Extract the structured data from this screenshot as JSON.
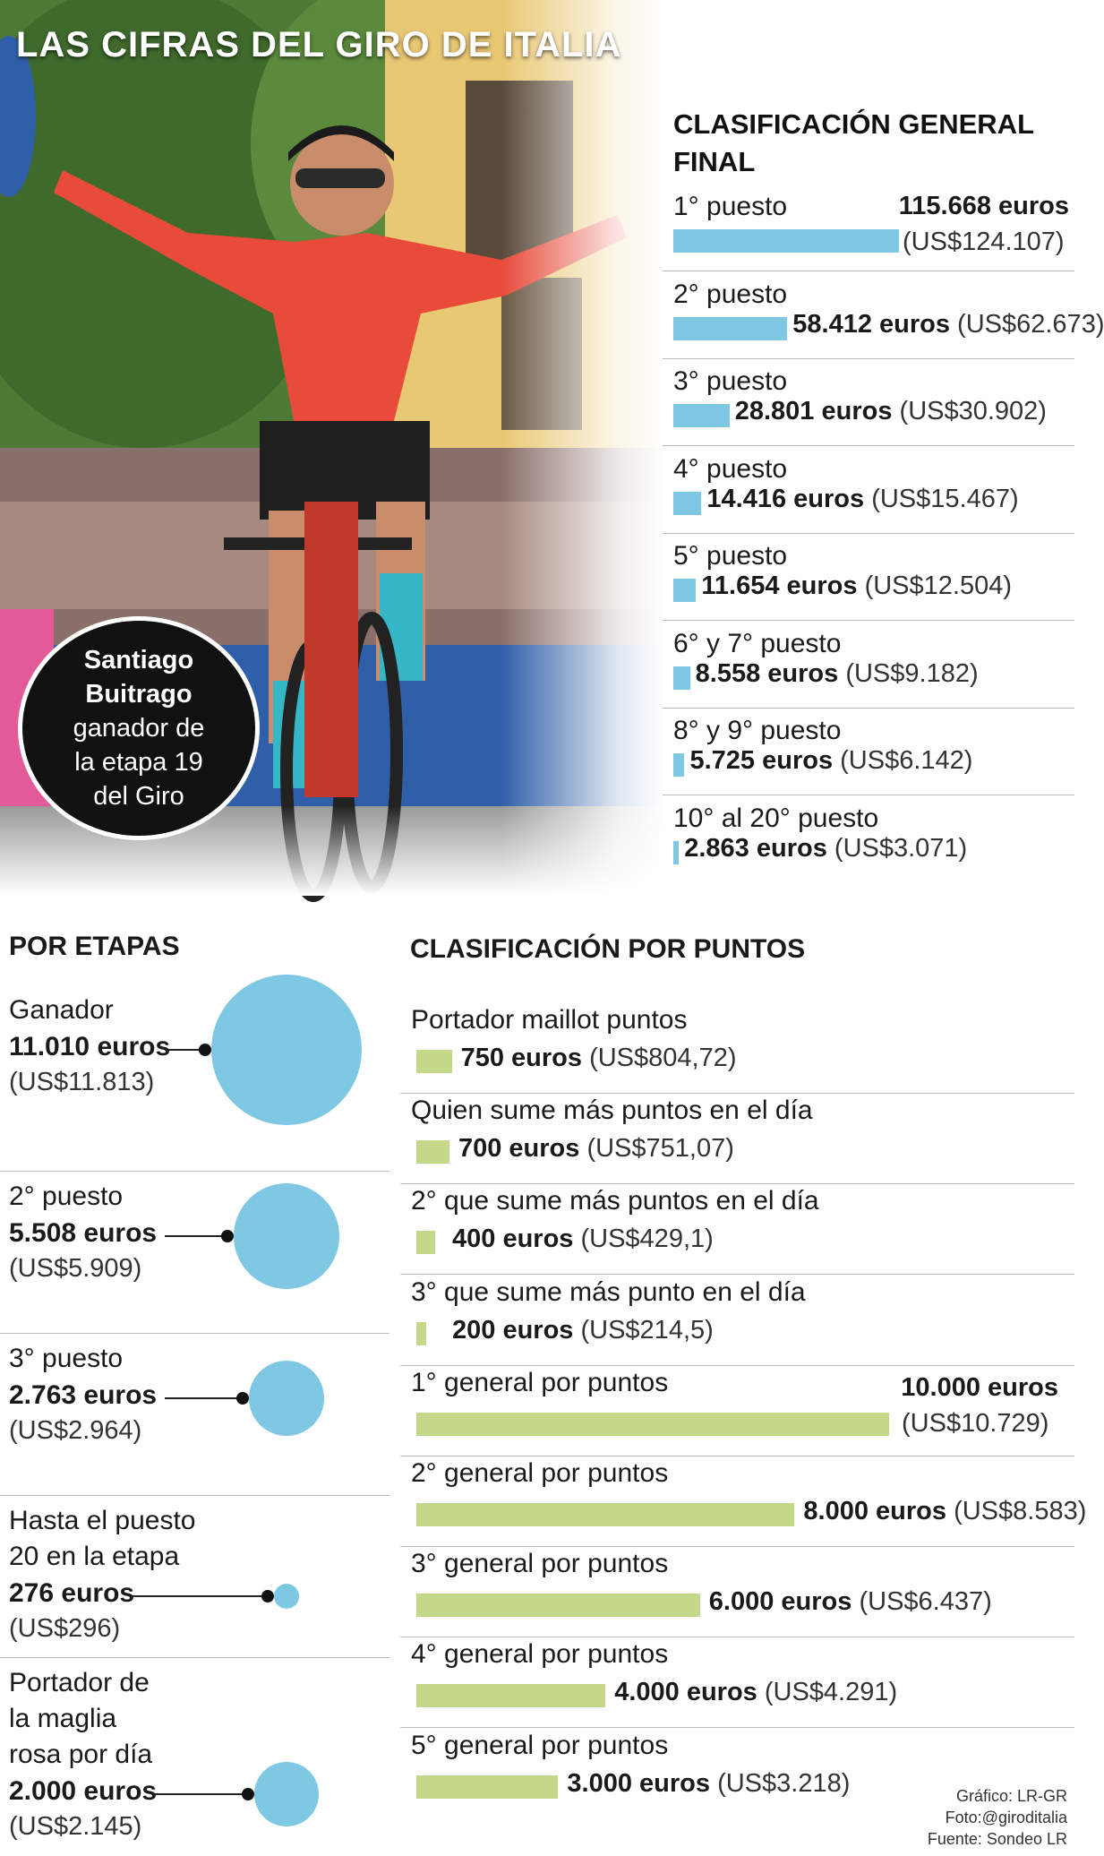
{
  "title": "LAS CIFRAS DEL GIRO DE ITALIA",
  "winner": {
    "name_line1": "Santiago",
    "name_line2": "Buitrago",
    "desc_line1": "ganador de",
    "desc_line2": "la etapa 19",
    "desc_line3": "del Giro"
  },
  "colors": {
    "blue": "#7ec8e3",
    "green": "#c5d88a"
  },
  "sections": {
    "general": "CLASIFICACIÓN GENERAL FINAL",
    "stages": "POR ETAPAS",
    "points": "CLASIFICACIÓN POR PUNTOS"
  },
  "chart_data": [
    {
      "type": "bar",
      "title": "CLASIFICACIÓN GENERAL FINAL",
      "categories": [
        "1° puesto",
        "2° puesto",
        "3° puesto",
        "4° puesto",
        "5° puesto",
        "6° y 7° puesto",
        "8° y 9° puesto",
        "10° al 20° puesto"
      ],
      "values": [
        115668,
        58412,
        28801,
        14416,
        11654,
        8558,
        5725,
        2863
      ],
      "value_labels": [
        "115.668 euros",
        "58.412 euros",
        "28.801 euros",
        "14.416 euros",
        "11.654 euros",
        "8.558 euros",
        "5.725 euros",
        "2.863 euros"
      ],
      "usd_labels": [
        "(US$124.107)",
        "(US$62.673)",
        "(US$30.902)",
        "(US$15.467)",
        "(US$12.504)",
        "(US$9.182)",
        "(US$6.142)",
        "(US$3.071)"
      ]
    },
    {
      "type": "bubble",
      "title": "POR ETAPAS",
      "categories": [
        "Ganador",
        "2° puesto",
        "3° puesto",
        "Hasta el puesto 20 en la etapa",
        "Portador de la maglia rosa por día"
      ],
      "label_lines": [
        [
          "Ganador"
        ],
        [
          "2° puesto"
        ],
        [
          "3° puesto"
        ],
        [
          "Hasta el puesto",
          "20 en la etapa"
        ],
        [
          "Portador de",
          "la maglia",
          "rosa por día"
        ]
      ],
      "values": [
        11010,
        5508,
        2763,
        276,
        2000
      ],
      "value_labels": [
        "11.010 euros",
        "5.508 euros",
        "2.763 euros",
        "276 euros",
        "2.000 euros"
      ],
      "usd_labels": [
        "(US$11.813)",
        "(US$5.909)",
        "(US$2.964)",
        "(US$296)",
        "(US$2.145)"
      ]
    },
    {
      "type": "bar",
      "title": "CLASIFICACIÓN POR PUNTOS",
      "categories": [
        "Portador maillot puntos",
        "Quien sume más puntos en el día",
        "2° que sume más puntos en el día",
        "3° que sume más punto en el día",
        "1° general por puntos",
        "2° general por puntos",
        "3° general por puntos",
        "4° general por puntos",
        "5° general por puntos"
      ],
      "values": [
        750,
        700,
        400,
        200,
        10000,
        8000,
        6000,
        4000,
        3000
      ],
      "value_labels": [
        "750 euros",
        "700 euros",
        "400 euros",
        "200 euros",
        "10.000 euros",
        "8.000 euros",
        "6.000 euros",
        "4.000 euros",
        "3.000 euros"
      ],
      "usd_labels": [
        "(US$804,72)",
        "(US$751,07)",
        "(US$429,1)",
        "(US$214,5)",
        "(US$10.729)",
        "(US$8.583)",
        "(US$6.437)",
        "(US$4.291)",
        "(US$3.218)"
      ]
    }
  ],
  "credits": [
    "Gráfico: LR-GR",
    "Foto:@giroditalia",
    "Fuente: Sondeo LR"
  ]
}
